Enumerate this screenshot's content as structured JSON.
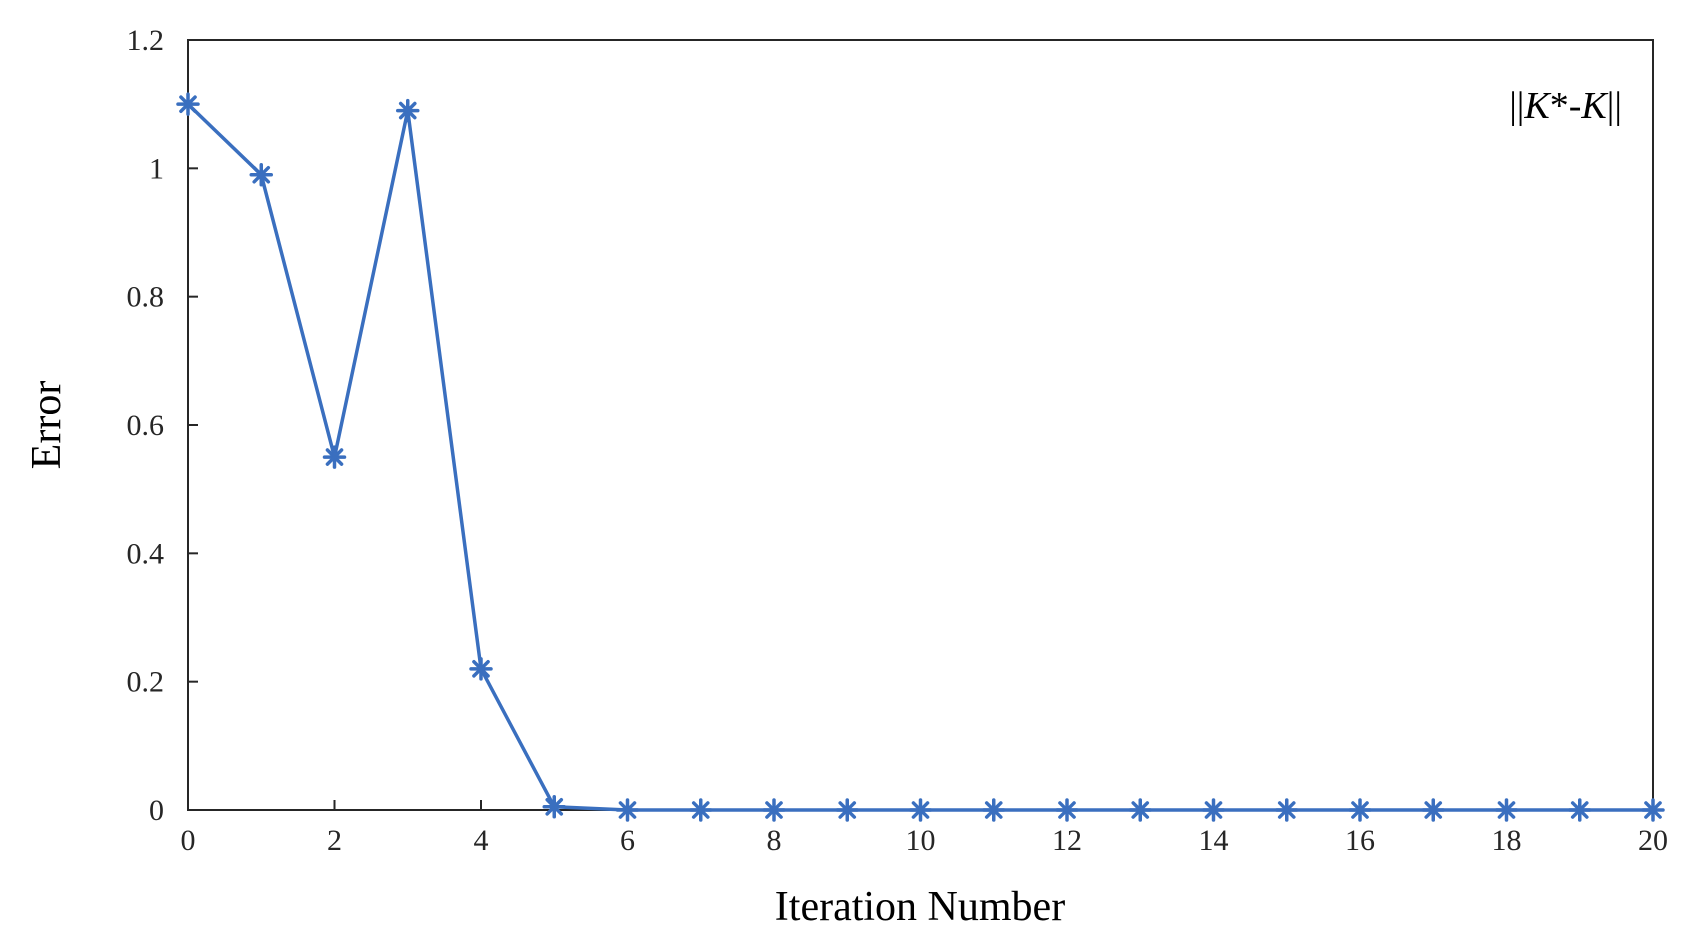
{
  "chart_data": {
    "type": "line",
    "xlabel": "Iteration Number",
    "ylabel": "Error",
    "xlim": [
      0,
      20
    ],
    "ylim": [
      0,
      1.2
    ],
    "xticks": [
      "0",
      "2",
      "4",
      "6",
      "8",
      "10",
      "12",
      "14",
      "16",
      "18",
      "20"
    ],
    "yticks": [
      "0",
      "0.2",
      "0.4",
      "0.6",
      "0.8",
      "1",
      "1.2"
    ],
    "grid": false,
    "legend_placement": "top-right",
    "legend": {
      "prefix": "||",
      "k_star": "K",
      "star": "*",
      "dash": "-",
      "k": "K",
      "suffix": "||"
    },
    "series": [
      {
        "color": "#3a6fbf",
        "marker": "asterisk",
        "x": [
          0,
          1,
          2,
          3,
          4,
          5,
          6,
          7,
          8,
          9,
          10,
          11,
          12,
          13,
          14,
          15,
          16,
          17,
          18,
          19,
          20
        ],
        "y": [
          1.1,
          0.99,
          0.55,
          1.09,
          0.22,
          0.005,
          0,
          0,
          0,
          0,
          0,
          0,
          0,
          0,
          0,
          0,
          0,
          0,
          0,
          0,
          0
        ]
      }
    ]
  }
}
